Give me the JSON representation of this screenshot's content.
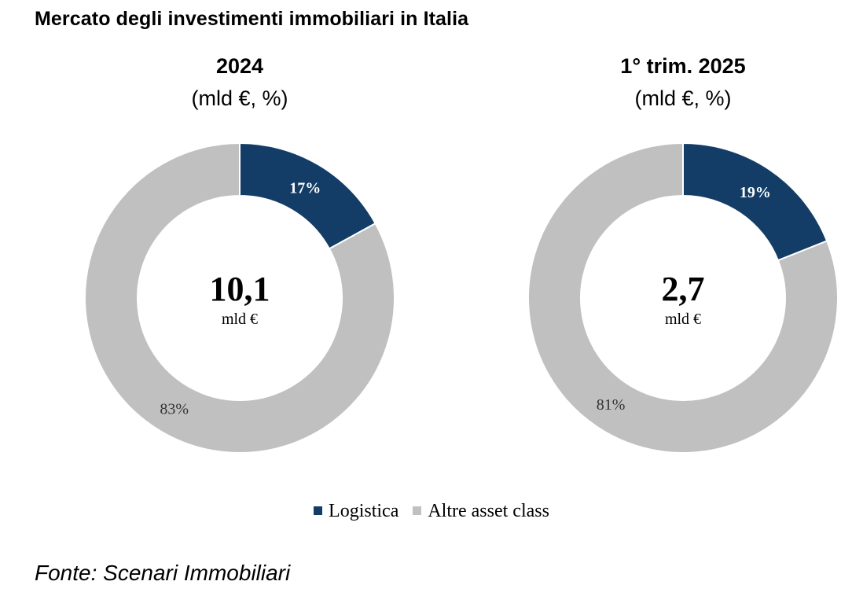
{
  "title": "Mercato degli investimenti immobiliari in Italia",
  "source": "Fonte: Scenari Immobiliari",
  "colors": {
    "logistica": "#133d66",
    "altre": "#c0c0c0",
    "label_dark": "#ffffff",
    "label_light": "#333333"
  },
  "legend": [
    {
      "label": "Logistica",
      "color": "#133d66"
    },
    {
      "label": "Altre asset class",
      "color": "#c0c0c0"
    }
  ],
  "chart_data": [
    {
      "type": "pie",
      "variant": "donut",
      "title": "2024",
      "subtitle": "(mld €, %)",
      "center_value": "10,1",
      "center_unit": "mld €",
      "slices": [
        {
          "label": "Logistica",
          "value": 17,
          "display": "17%"
        },
        {
          "label": "Altre asset class",
          "value": 83,
          "display": "83%"
        }
      ]
    },
    {
      "type": "pie",
      "variant": "donut",
      "title": "1° trim. 2025",
      "subtitle": "(mld €, %)",
      "center_value": "2,7",
      "center_unit": "mld €",
      "slices": [
        {
          "label": "Logistica",
          "value": 19,
          "display": "19%"
        },
        {
          "label": "Altre asset class",
          "value": 81,
          "display": "81%"
        }
      ]
    }
  ]
}
